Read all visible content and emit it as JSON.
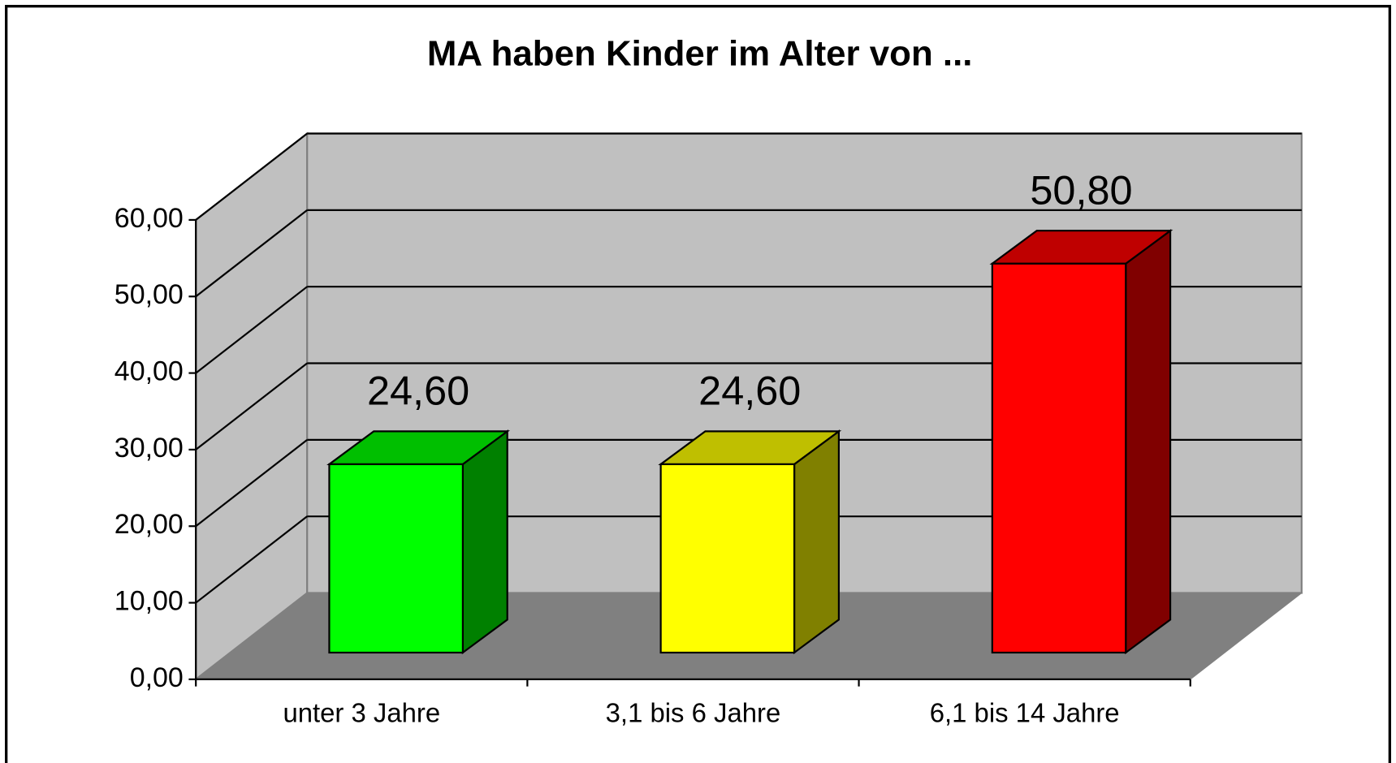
{
  "chart_data": {
    "type": "bar3d",
    "title": "MA haben Kinder im Alter von ...",
    "categories": [
      "unter 3 Jahre",
      "3,1 bis 6 Jahre",
      "6,1 bis 14 Jahre"
    ],
    "values": [
      24.6,
      24.6,
      50.8
    ],
    "value_labels": [
      "24,60",
      "24,60",
      "50,80"
    ],
    "colors": [
      "#00ff00",
      "#ffff00",
      "#ff0000"
    ],
    "ylim": [
      0,
      60
    ],
    "yticks": [
      {
        "value": 0,
        "label": "0,00"
      },
      {
        "value": 10,
        "label": "10,00"
      },
      {
        "value": 20,
        "label": "20,00"
      },
      {
        "value": 30,
        "label": "30,00"
      },
      {
        "value": 40,
        "label": "40,00"
      },
      {
        "value": 50,
        "label": "50,00"
      },
      {
        "value": 60,
        "label": "60,00"
      }
    ],
    "grid": true
  }
}
